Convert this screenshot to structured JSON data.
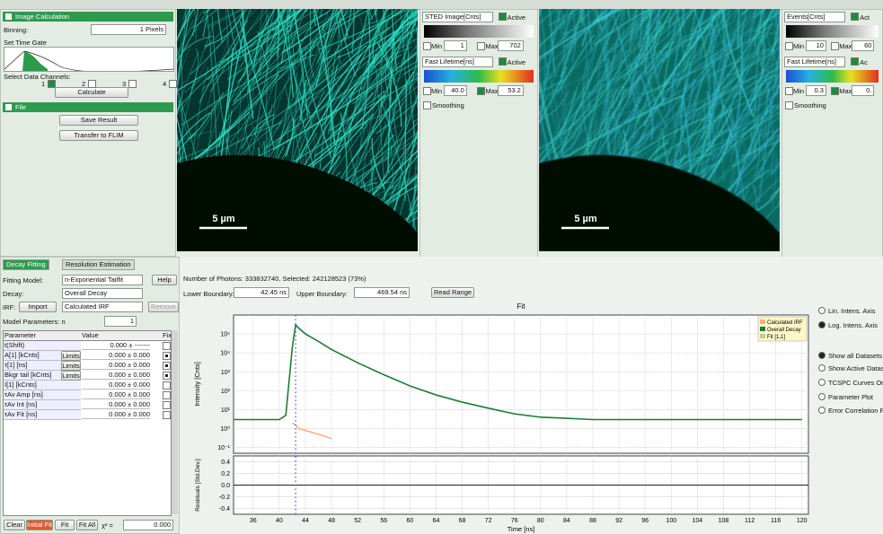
{
  "image_calculation": {
    "title": "Image Calculation",
    "binning_label": "Binning:",
    "binning": "1 Pixels",
    "time_gate": "Set Time Gate",
    "channels_label": "Select Data Channels:",
    "channels": [
      "1",
      "2",
      "3",
      "4"
    ],
    "calculate": "Calculate"
  },
  "file": {
    "title": "File",
    "save": "Save Result",
    "transfer": "Transfer to FLIM"
  },
  "images": [
    {
      "scale_bar": "5 µm"
    },
    {
      "scale_bar": "5 µm"
    }
  ],
  "display_1": {
    "intensity": "STED Image[Cnts]",
    "active": "Active",
    "min_label": "Min",
    "min": "1",
    "max_label": "Max",
    "max": "702",
    "lifetime": "Fast Lifetime[ns]",
    "lifetime_active": "Active",
    "lifetime_min": "40.0",
    "lifetime_max": "53.2",
    "smoothing": "Smoothing"
  },
  "display_2": {
    "intensity": "Events[Cnts]",
    "active": "Act",
    "min_label": "Min",
    "min": "10",
    "max_label": "Max",
    "max": "60",
    "lifetime": "Fast Lifetime[ns]",
    "lifetime_active": "Ac",
    "lifetime_min": "0.3",
    "lifetime_max": "0.",
    "smoothing": "Smoothing"
  },
  "tabs": [
    "Decay Fitting",
    "Resolution Estimation"
  ],
  "fitting": {
    "model_label": "Fitting Model:",
    "model": "n-Exponential Tailfit",
    "help": "Help",
    "decay_label": "Decay:",
    "decay": "Overall Decay",
    "irf_label": "IRF:",
    "import": "Import",
    "irf": "Calculated IRF",
    "remove": "Remove",
    "parameters_label": "Model Parameters:  n",
    "n": "1"
  },
  "parameters": {
    "headers": [
      "Parameter",
      "Value",
      "Fix"
    ],
    "rows": [
      {
        "parameter": "t(Shift)",
        "value": "0.000 ± -------"
      },
      {
        "parameter": "A[1] [kCnts]",
        "limits": "Limits",
        "value": "0.000 ± 0.000",
        "fixed": true
      },
      {
        "parameter": "τ[1] [ns]",
        "limits": "Limits",
        "value": "0.000 ± 0.000",
        "fixed": true
      },
      {
        "parameter": "Bkgr tail [kCnts]",
        "limits": "Limits",
        "value": "0.000 ± 0.000",
        "fixed": true
      },
      {
        "parameter": "I[1] [kCnts]",
        "value": "0.000 ± 0.000"
      },
      {
        "parameter": "τAv Amp [ns]",
        "value": "0.000 ± 0.000"
      },
      {
        "parameter": "τAv Int [ns]",
        "value": "0.000 ± 0.000"
      },
      {
        "parameter": "τAv Fit [ns]",
        "value": "0.000 ± 0.000"
      }
    ]
  },
  "actions": {
    "clear": "Clear",
    "initial_fit": "Initial Fit",
    "fit": "Fit",
    "fit_all": "Fit All",
    "chi2_label": "χ² =",
    "chi2": "0.000"
  },
  "range": {
    "photons": "Number of Photons: 333832740, Selected: 242128523 (73%)",
    "lower_label": "Lower Boundary:",
    "lower": "42.45 ns",
    "upper_label": "Upper Boundary:",
    "upper": "469.54 ns",
    "read_range": "Read Range"
  },
  "chart_data": {
    "type": "line",
    "title": "Fit",
    "x_label": "Time [ns]",
    "y_label": "Intensity [Cnts]",
    "log_y": true,
    "grid": true,
    "legend": "top-right",
    "x": [
      33,
      36,
      38,
      40,
      41,
      42,
      42.5,
      43,
      44,
      46,
      48,
      52,
      56,
      60,
      64,
      68,
      72,
      76,
      80,
      84,
      88,
      92,
      96,
      100,
      104,
      108,
      112,
      116,
      120
    ],
    "series": [
      {
        "name": "Calculated IRF",
        "color": "#f4b183",
        "values": [
          null,
          null,
          null,
          null,
          null,
          2,
          1.5,
          1,
          0.8,
          0.5,
          0.3,
          null,
          null,
          null,
          null,
          null,
          null,
          null,
          null,
          null,
          null,
          null,
          null,
          null,
          null,
          null,
          null,
          null,
          null
        ]
      },
      {
        "name": "Overall Decay",
        "color": "#1e7b3a",
        "values": [
          3,
          3,
          3,
          3,
          5,
          20000,
          300000,
          200000,
          100000,
          40000,
          15000,
          3000,
          700,
          180,
          60,
          25,
          12,
          6,
          4,
          3.5,
          3,
          3,
          3,
          3,
          3,
          3,
          3,
          3,
          3
        ]
      },
      {
        "name": "Fit [1,1]",
        "color": "#c8c8a0",
        "values": [
          null,
          null,
          null,
          null,
          null,
          null,
          null,
          null,
          null,
          null,
          null,
          null,
          null,
          null,
          null,
          null,
          null,
          null,
          null,
          null,
          null,
          null,
          null,
          null,
          null,
          null,
          null,
          null,
          null
        ]
      }
    ],
    "xlim": [
      33,
      121
    ],
    "xticks": [
      36,
      40,
      44,
      48,
      52,
      56,
      60,
      64,
      68,
      72,
      76,
      80,
      84,
      88,
      92,
      96,
      100,
      104,
      108,
      112,
      116,
      120
    ],
    "ylim": [
      0.05,
      1000000
    ],
    "yticks": [
      {
        "value": 0.1,
        "label": "10⁻¹"
      },
      {
        "value": 1,
        "label": "10⁰"
      },
      {
        "value": 10,
        "label": "10¹"
      },
      {
        "value": 100,
        "label": "10²"
      },
      {
        "value": 1000,
        "label": "10³"
      },
      {
        "value": 10000,
        "label": "10⁴"
      },
      {
        "value": 100000,
        "label": "10⁵"
      }
    ]
  },
  "residuals": {
    "y_label": "Residuals [Std.Dev.]",
    "ylim": [
      -0.5,
      0.5
    ],
    "yticks": [
      0.4,
      0.2,
      {
        "value": 0,
        "label": "0.0"
      },
      -0.2,
      -0.4
    ]
  },
  "view_options": [
    {
      "label": "Lin. Intens. Axis",
      "checked": false
    },
    {
      "label": "Log. Intens. Axis",
      "checked": true
    },
    {
      "label": "Show all Datasets",
      "checked": true
    },
    {
      "label": "Show Active Dataset",
      "checked": false
    },
    {
      "label": "TCSPC Curves Only",
      "checked": false
    },
    {
      "label": "Parameter Plot",
      "checked": false
    },
    {
      "label": "Error Correlation Plot",
      "checked": false
    }
  ]
}
